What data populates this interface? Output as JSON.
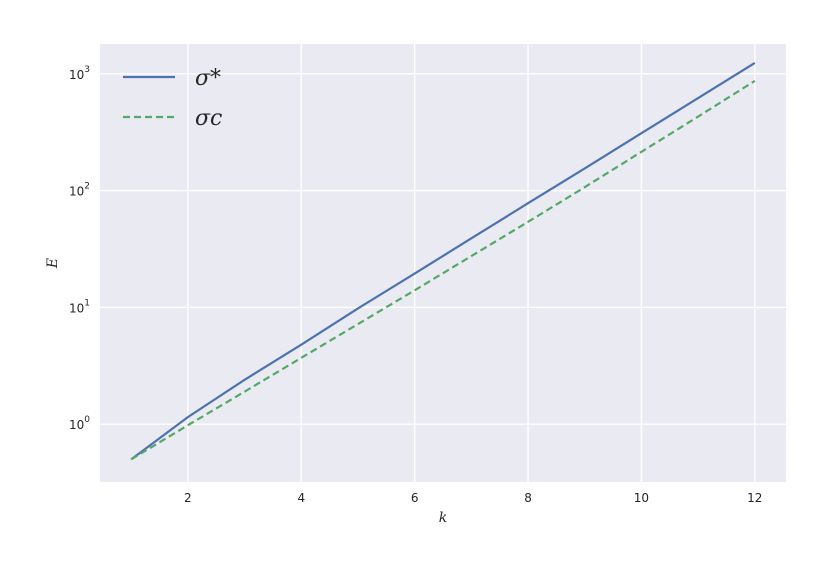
{
  "chart_data": {
    "type": "line",
    "title": "",
    "xlabel": "k",
    "ylabel": "E",
    "x": [
      1,
      2,
      3,
      4,
      5,
      6,
      7,
      8,
      9,
      10,
      11,
      12
    ],
    "series": [
      {
        "name": "σ*",
        "color": "#4c72b0",
        "style": "solid",
        "values": [
          0.5,
          1.15,
          2.4,
          4.8,
          9.8,
          19.5,
          39,
          78,
          155,
          310,
          620,
          1240
        ]
      },
      {
        "name": "σc",
        "color": "#55a868",
        "style": "dashed",
        "values": [
          0.5,
          0.98,
          1.9,
          3.7,
          7.2,
          14,
          27.5,
          54,
          107,
          215,
          430,
          870
        ]
      }
    ],
    "xlim": [
      0.45,
      12.55
    ],
    "ylim": [
      0.32,
      1800
    ],
    "yscale": "log",
    "xticks": [
      2,
      4,
      6,
      8,
      10,
      12
    ],
    "yticks": [
      {
        "value": 1,
        "base": "10",
        "exp": "0"
      },
      {
        "value": 10,
        "base": "10",
        "exp": "1"
      },
      {
        "value": 100,
        "base": "10",
        "exp": "2"
      },
      {
        "value": 1000,
        "base": "10",
        "exp": "3"
      }
    ],
    "grid": true,
    "legend_position": "top-left",
    "background_color": "#eaeaf2",
    "grid_color": "#ffffff"
  }
}
